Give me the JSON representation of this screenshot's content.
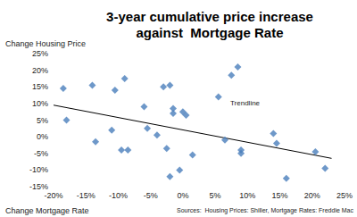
{
  "chart_data": {
    "type": "scatter",
    "title": "3-year cumulative price increase\nagainst  Mortgage Rate",
    "xlabel": "Change Mortgage Rate",
    "ylabel": "Change Housing Price",
    "annotations": [
      "Sources:  Housing Prices: Shiller, Mortgage Rates: Freddie Mac"
    ],
    "xlim": [
      -20,
      25
    ],
    "xticks": [
      {
        "value": -20,
        "label": "-20%"
      },
      {
        "value": -15,
        "label": "-15%"
      },
      {
        "value": -10,
        "label": "-10%"
      },
      {
        "value": -5,
        "label": "-5%"
      },
      {
        "value": 0,
        "label": "0%"
      },
      {
        "value": 5,
        "label": "5%"
      },
      {
        "value": 10,
        "label": "10%"
      },
      {
        "value": 15,
        "label": "15%"
      },
      {
        "value": 20,
        "label": "20%"
      },
      {
        "value": 25,
        "label": "25%"
      }
    ],
    "ylim": [
      -15,
      25
    ],
    "yticks": [
      {
        "value": -15,
        "label": "-15%"
      },
      {
        "value": -10,
        "label": "-10%"
      },
      {
        "value": -5,
        "label": "-5%"
      },
      {
        "value": 0,
        "label": "0%"
      },
      {
        "value": 5,
        "label": "5%"
      },
      {
        "value": 10,
        "label": "10%"
      },
      {
        "value": 15,
        "label": "15%"
      },
      {
        "value": 20,
        "label": "20%"
      },
      {
        "value": 25,
        "label": "25%"
      }
    ],
    "grid": false,
    "series": [
      {
        "type": "scatter",
        "color": "#4a7ebb",
        "marker": "diamond",
        "x": [
          -18.5,
          -18,
          -14,
          -13.5,
          -11,
          -10.5,
          -9.5,
          -9,
          -8.5,
          -6,
          -5.5,
          -4,
          -3,
          -2.5,
          -2,
          -2,
          -1.5,
          -1.5,
          -0.5,
          0,
          0.5,
          1.5,
          5.5,
          6.5,
          7.5,
          8.5,
          9,
          9,
          14,
          14.5,
          16,
          20.5,
          22
        ],
        "values": [
          14.5,
          5,
          15.5,
          -1.5,
          2,
          14,
          -4,
          17.5,
          -4,
          9,
          2.5,
          0.5,
          15,
          -3.5,
          15.5,
          -12,
          8.5,
          7,
          -10,
          7.5,
          6.5,
          -5.5,
          12,
          -1,
          18.5,
          21,
          -4,
          -5,
          1,
          -2,
          -12.5,
          -4.5,
          -9.5
        ]
      },
      {
        "name": "Trendline",
        "type": "line",
        "color": "#000000",
        "line_style": "solid",
        "x": [
          -20,
          23
        ],
        "values": [
          9.5,
          -6.5
        ]
      }
    ]
  }
}
